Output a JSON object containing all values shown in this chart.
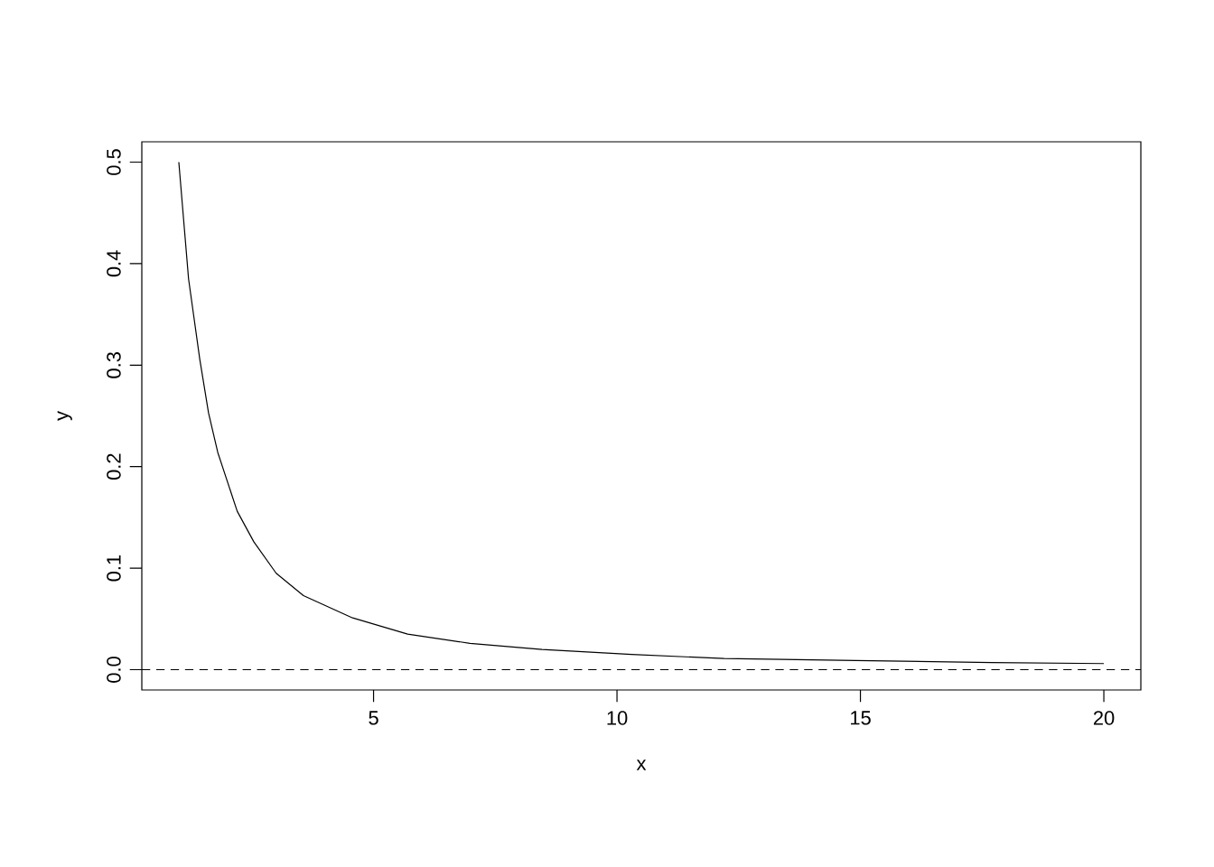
{
  "chart_data": {
    "type": "line",
    "xlabel": "x",
    "ylabel": "y",
    "x": [
      1,
      1.2,
      1.43,
      1.61,
      1.8,
      2.2,
      2.54,
      3.0,
      3.56,
      4.57,
      5.7,
      6.98,
      8.46,
      10.3,
      12.2,
      14.9,
      17.7,
      20
    ],
    "series": [
      {
        "color": "#000000",
        "values": [
          0.5,
          0.385,
          0.306,
          0.253,
          0.214,
          0.156,
          0.126,
          0.095,
          0.073,
          0.051,
          0.035,
          0.026,
          0.02,
          0.015,
          0.011,
          0.009,
          0.007,
          0.006
        ]
      }
    ],
    "xlim": [
      0.24,
      20.76
    ],
    "ylim": [
      -0.02,
      0.52
    ],
    "xticks": [
      5,
      10,
      15,
      20
    ],
    "yticks": [
      {
        "value": 0,
        "label": "0.0"
      },
      {
        "value": 0.1,
        "label": "0.1"
      },
      {
        "value": 0.2,
        "label": "0.2"
      },
      {
        "value": 0.3,
        "label": "0.3"
      },
      {
        "value": 0.4,
        "label": "0.4"
      },
      {
        "value": 0.5,
        "label": "0.5"
      }
    ],
    "ref_lines": [
      {
        "axis": "y",
        "value": 0,
        "line_style": "dashed"
      }
    ],
    "grid": false,
    "marker": "none",
    "line_style": "solid"
  }
}
